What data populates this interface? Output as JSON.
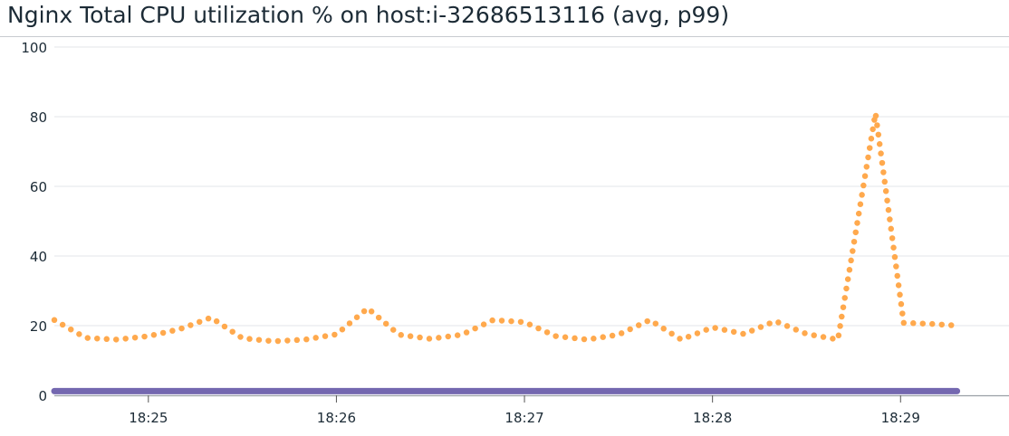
{
  "chart_data": {
    "type": "line",
    "title": "Nginx Total CPU utilization % on host:i-32686513116 (avg, p99)",
    "xlabel": "",
    "ylabel": "",
    "ylim": [
      0,
      100
    ],
    "xlim": [
      "18:24:30",
      "18:29:32"
    ],
    "y_ticks": [
      "0",
      "20",
      "40",
      "60",
      "80",
      "100"
    ],
    "x_ticks": [
      "18:25",
      "18:26",
      "18:27",
      "18:28",
      "18:29"
    ],
    "grid": true,
    "legend": "none",
    "series": [
      {
        "color": "#ffa94d",
        "style": "dotted",
        "x": [
          "18:24:30",
          "18:24:40",
          "18:24:50",
          "18:25:00",
          "18:25:10",
          "18:25:20",
          "18:25:30",
          "18:25:40",
          "18:25:50",
          "18:26:00",
          "18:26:10",
          "18:26:20",
          "18:26:30",
          "18:26:40",
          "18:26:50",
          "18:27:00",
          "18:27:10",
          "18:27:20",
          "18:27:30",
          "18:27:40",
          "18:27:50",
          "18:28:00",
          "18:28:10",
          "18:28:20",
          "18:28:30",
          "18:28:40",
          "18:28:52",
          "18:29:01",
          "18:29:10",
          "18:29:18"
        ],
        "values": [
          21.6,
          16.5,
          16,
          17,
          19,
          22.3,
          16.4,
          15.5,
          16,
          17.5,
          25,
          17.4,
          16.2,
          17.4,
          21.6,
          21,
          17,
          16,
          17.4,
          21.6,
          16,
          19.5,
          17.6,
          21.3,
          17.6,
          16,
          81,
          20.8,
          20.5,
          20
        ]
      },
      {
        "color": "#7468b0",
        "style": "solid",
        "x": [
          "18:24:30",
          "18:29:18"
        ],
        "values": [
          1.2,
          1.2
        ]
      }
    ]
  }
}
